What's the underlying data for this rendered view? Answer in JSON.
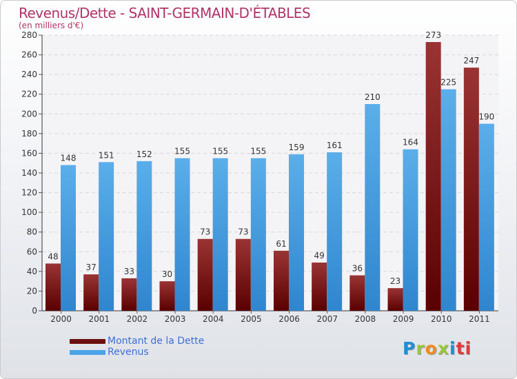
{
  "chart_data": {
    "type": "bar",
    "title": "Revenus/Dette - SAINT-GERMAIN-D'ÉTABLES",
    "subtitle": "(en milliers d'€)",
    "categories": [
      "2000",
      "2001",
      "2002",
      "2003",
      "2004",
      "2005",
      "2006",
      "2007",
      "2008",
      "2009",
      "2010",
      "2011"
    ],
    "series": [
      {
        "name": "Montant de la Dette",
        "color": "#7a1414",
        "values": [
          48,
          37,
          33,
          30,
          73,
          73,
          61,
          49,
          36,
          23,
          273,
          247
        ]
      },
      {
        "name": "Revenus",
        "color": "#4ba3e8",
        "values": [
          148,
          151,
          152,
          155,
          155,
          155,
          159,
          161,
          210,
          164,
          225,
          190
        ]
      }
    ],
    "yticks": [
      0,
      20,
      40,
      60,
      80,
      100,
      120,
      140,
      160,
      180,
      200,
      220,
      240,
      260,
      280
    ],
    "ylim": [
      0,
      280
    ],
    "grid": true,
    "legend_position": "bottom-left"
  },
  "logo": {
    "text": "Proxiti",
    "letters": [
      "P",
      "r",
      "o",
      "x",
      "i",
      "ti"
    ]
  }
}
